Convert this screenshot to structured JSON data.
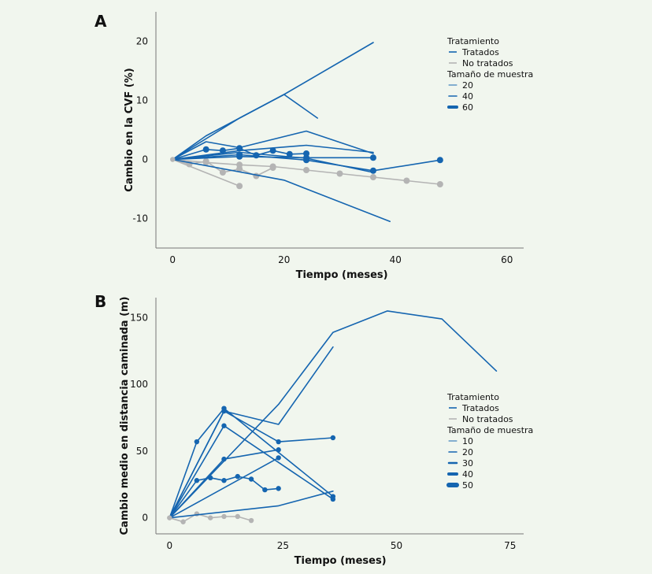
{
  "chart_data": [
    {
      "panel": "A",
      "type": "line",
      "xlabel": "Tiempo (meses)",
      "ylabel": "Cambio en la CVF (%)",
      "xlim": [
        -3,
        63
      ],
      "ylim": [
        -15,
        25
      ],
      "xticks": [
        0,
        20,
        40,
        60
      ],
      "yticks": [
        -10,
        0,
        10,
        20
      ],
      "grid": false,
      "legend": {
        "placement": "top-right",
        "title1": "Tratamiento",
        "groups": [
          {
            "label": "Tratados",
            "color": "#1565b0"
          },
          {
            "label": "No tratados",
            "color": "#b4b4b4"
          }
        ],
        "title2": "Tamaño de muestra",
        "sizes": [
          {
            "label": "20",
            "w": 1
          },
          {
            "label": "40",
            "w": 1.6
          },
          {
            "label": "60",
            "w": 4
          }
        ]
      },
      "series": [
        {
          "group": "Tratados",
          "markers": false,
          "x": [
            0,
            12,
            20,
            36
          ],
          "y": [
            0,
            7,
            11,
            19.8
          ]
        },
        {
          "group": "Tratados",
          "markers": false,
          "x": [
            0,
            6,
            20,
            26
          ],
          "y": [
            0,
            4,
            11,
            7
          ]
        },
        {
          "group": "Tratados",
          "markers": false,
          "x": [
            0,
            20,
            39
          ],
          "y": [
            0,
            -3.5,
            -10.5
          ]
        },
        {
          "group": "Tratados",
          "markers": false,
          "x": [
            0,
            6,
            12,
            24,
            36
          ],
          "y": [
            0,
            3,
            2,
            4.8,
            1
          ]
        },
        {
          "group": "Tratados",
          "markers": false,
          "x": [
            0,
            12,
            24,
            36
          ],
          "y": [
            0,
            1.5,
            2.4,
            1.2
          ]
        },
        {
          "group": "Tratados",
          "markers": false,
          "x": [
            0,
            12,
            24,
            36
          ],
          "y": [
            0,
            1.2,
            0.2,
            -2.2
          ]
        },
        {
          "group": "Tratados",
          "markers": true,
          "x": [
            0,
            12,
            24,
            36
          ],
          "y": [
            0,
            0.5,
            0.3,
            0.3
          ]
        },
        {
          "group": "Tratados",
          "markers": true,
          "x": [
            0,
            6,
            9,
            12,
            15,
            18,
            21,
            24
          ],
          "y": [
            0,
            1.7,
            1.5,
            1.9,
            0.7,
            1.5,
            0.9,
            1.0
          ]
        },
        {
          "group": "Tratados",
          "markers": true,
          "x": [
            0,
            12,
            24,
            36,
            48
          ],
          "y": [
            0,
            0.8,
            -0.1,
            -1.9,
            -0.1
          ]
        },
        {
          "group": "No tratados",
          "markers": true,
          "x": [
            0,
            12
          ],
          "y": [
            0,
            -4.5
          ]
        },
        {
          "group": "No tratados",
          "markers": true,
          "x": [
            0,
            3,
            6,
            9,
            12,
            15,
            18
          ],
          "y": [
            0,
            -0.8,
            -0.3,
            -2.2,
            -1.6,
            -2.8,
            -1.4
          ]
        },
        {
          "group": "No tratados",
          "markers": true,
          "x": [
            0,
            6,
            12,
            18,
            24,
            30,
            36,
            42,
            48
          ],
          "y": [
            0,
            -0.5,
            -0.9,
            -1.2,
            -1.8,
            -2.4,
            -3.0,
            -3.6,
            -4.2
          ]
        }
      ]
    },
    {
      "panel": "B",
      "type": "line",
      "xlabel": "Tiempo (meses)",
      "ylabel": "Cambio medio en distancia caminada (m)",
      "xlim": [
        -3,
        78
      ],
      "ylim": [
        -12,
        165
      ],
      "xticks": [
        0,
        25,
        50,
        75
      ],
      "yticks": [
        0,
        50,
        100,
        150
      ],
      "grid": false,
      "legend": {
        "placement": "right",
        "title1": "Tratamiento",
        "groups": [
          {
            "label": "Tratados",
            "color": "#1565b0"
          },
          {
            "label": "No tratados",
            "color": "#b4b4b4"
          }
        ],
        "title2": "Tamaño de muestra",
        "sizes": [
          {
            "label": "10",
            "w": 1
          },
          {
            "label": "20",
            "w": 1.5
          },
          {
            "label": "30",
            "w": 2.5
          },
          {
            "label": "40",
            "w": 4
          },
          {
            "label": "50",
            "w": 6
          }
        ]
      },
      "series": [
        {
          "group": "Tratados",
          "markers": false,
          "x": [
            0,
            24,
            36,
            48,
            60,
            72
          ],
          "y": [
            0,
            85,
            139,
            155,
            149,
            110
          ]
        },
        {
          "group": "Tratados",
          "markers": false,
          "x": [
            0,
            12,
            24,
            36
          ],
          "y": [
            0,
            80,
            70,
            128
          ]
        },
        {
          "group": "Tratados",
          "markers": true,
          "x": [
            0,
            6,
            12,
            36
          ],
          "y": [
            0,
            57,
            82,
            16
          ]
        },
        {
          "group": "Tratados",
          "markers": true,
          "x": [
            0,
            12,
            36
          ],
          "y": [
            0,
            69,
            14
          ]
        },
        {
          "group": "Tratados",
          "markers": true,
          "x": [
            0,
            12,
            24
          ],
          "y": [
            0,
            44,
            51
          ]
        },
        {
          "group": "Tratados",
          "markers": false,
          "x": [
            0,
            24,
            36
          ],
          "y": [
            0,
            9,
            20
          ]
        },
        {
          "group": "Tratados",
          "markers": true,
          "x": [
            0,
            12,
            24,
            36
          ],
          "y": [
            0,
            80,
            57,
            60
          ]
        },
        {
          "group": "Tratados",
          "markers": true,
          "x": [
            0,
            24
          ],
          "y": [
            0,
            45
          ]
        },
        {
          "group": "Tratados",
          "markers": true,
          "x": [
            0,
            6,
            9,
            12,
            15,
            18,
            21,
            24
          ],
          "y": [
            0,
            28,
            30,
            28,
            31,
            29,
            21,
            22
          ]
        },
        {
          "group": "No tratados",
          "markers": true,
          "x": [
            0,
            3,
            6,
            9,
            12,
            15,
            18
          ],
          "y": [
            0,
            -3,
            3,
            0,
            1,
            1,
            -2
          ]
        }
      ]
    }
  ]
}
